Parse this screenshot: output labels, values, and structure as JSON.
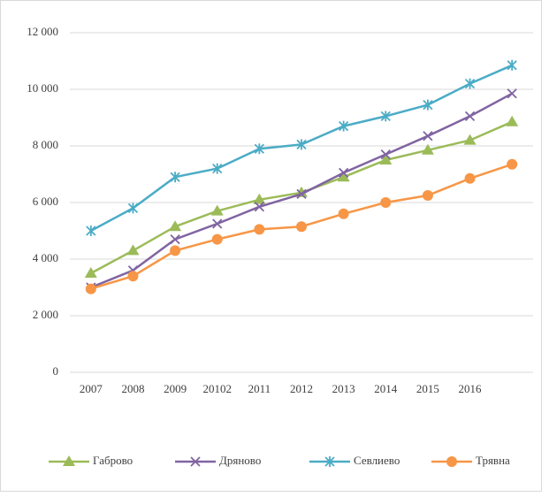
{
  "chart_data": {
    "type": "line",
    "categories": [
      "2007",
      "2008",
      "2009",
      "20102",
      "2011",
      "2012",
      "2013",
      "2014",
      "2015",
      "2016",
      null
    ],
    "series": [
      {
        "name": "Габрово",
        "color": "#9bbb59",
        "marker": "triangle",
        "values": [
          3500,
          4300,
          5150,
          5700,
          6100,
          6350,
          6900,
          7500,
          7850,
          8200,
          8850
        ]
      },
      {
        "name": "Дряново",
        "color": "#8064a2",
        "marker": "x",
        "values": [
          3000,
          3600,
          4700,
          5250,
          5850,
          6300,
          7050,
          7700,
          8350,
          9050,
          9850
        ]
      },
      {
        "name": "Севлиево",
        "color": "#4bacc6",
        "marker": "star",
        "values": [
          5000,
          5800,
          6900,
          7200,
          7900,
          8050,
          8700,
          9050,
          9450,
          10200,
          10850
        ]
      },
      {
        "name": "Трявна",
        "color": "#f79646",
        "marker": "circle",
        "values": [
          2950,
          3400,
          4300,
          4700,
          5050,
          5150,
          5600,
          6000,
          6250,
          6850,
          7350
        ]
      }
    ],
    "ylim": [
      0,
      12000
    ],
    "yticks": [
      {
        "value": 0,
        "label": "0"
      },
      {
        "value": 2000,
        "label": "2 000"
      },
      {
        "value": 4000,
        "label": "4 000"
      },
      {
        "value": 6000,
        "label": "6 000"
      },
      {
        "value": 8000,
        "label": "8 000"
      },
      {
        "value": 10000,
        "label": "10 000"
      },
      {
        "value": 12000,
        "label": "12 000"
      }
    ],
    "grid": true,
    "legend": "bottom"
  }
}
